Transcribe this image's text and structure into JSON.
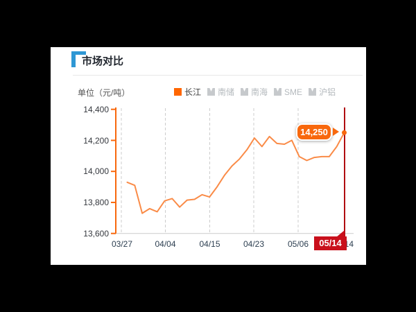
{
  "page": {
    "background_color": "#000000"
  },
  "card": {
    "title": "市场对比",
    "unit_label": "单位（元/吨）",
    "accent_color": "#2e97d4"
  },
  "legend": {
    "items": [
      {
        "label": "长江",
        "active": true,
        "color": "#ff6600"
      },
      {
        "label": "南储",
        "active": false
      },
      {
        "label": "南海",
        "active": false
      },
      {
        "label": "SME",
        "active": false
      },
      {
        "label": "沪铝",
        "active": false
      }
    ]
  },
  "chart_data": {
    "type": "line",
    "title": "市场对比",
    "ylabel": "元/吨",
    "series": [
      {
        "name": "长江",
        "color": "#fa8b47",
        "values": [
          13930,
          13910,
          13730,
          13760,
          13740,
          13810,
          13825,
          13770,
          13815,
          13820,
          13850,
          13835,
          13900,
          13975,
          14035,
          14080,
          14140,
          14215,
          14160,
          14225,
          14180,
          14175,
          14200,
          14095,
          14070,
          14090,
          14095,
          14095,
          14160,
          14250
        ]
      }
    ],
    "x_tick_labels": [
      "03/27",
      "04/04",
      "04/15",
      "04/23",
      "05/06",
      "05/14"
    ],
    "y_tick_labels": [
      "14,400",
      "14,200",
      "14,000",
      "13,800",
      "13,600"
    ],
    "y_ticks": [
      14400,
      14200,
      14000,
      13800,
      13600
    ],
    "ylim": [
      13600,
      14400
    ],
    "grid": "vertical dashed",
    "legend_position": "top",
    "axis_color": "#f8680d",
    "highlight": {
      "date": "05/14",
      "value": 14250,
      "value_label": "14,250",
      "callout_color": "#f8680d",
      "crosshair_color": "#b00b10",
      "date_badge_color": "#c9101c"
    }
  }
}
